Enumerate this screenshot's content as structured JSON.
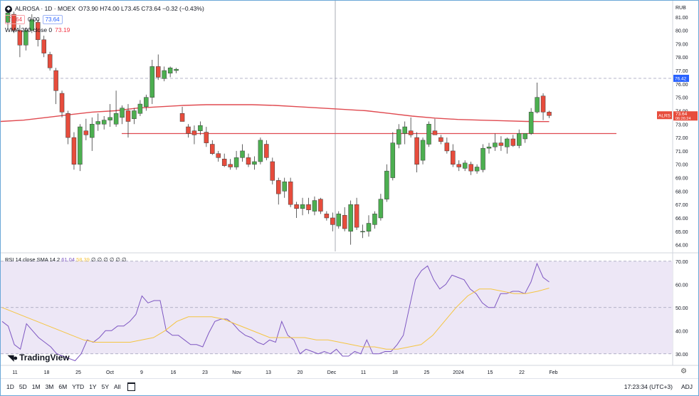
{
  "symbol": {
    "name": "ALROSA · 1D · MOEX",
    "ohlc_text": "O73.90 H74.00 L73.45 C73.64 −0.32 (−0.43%)",
    "price_box_red": "73.64",
    "change_box": "0.00",
    "price_box_blue": "73.64",
    "wma_label": "WMA 200 close 0",
    "wma_value": "73.19",
    "currency": "RUB",
    "last_label": "ALRS",
    "last_price": "73.64",
    "countdown": "06:26:24",
    "dashed_price": "76.42"
  },
  "rsi": {
    "label": "RSI 14 close SMA 14 2",
    "value": "61.04",
    "sma_value": "58.39",
    "extra": "∅ ∅ ∅ ∅ ∅ ∅"
  },
  "brand": "TradingView",
  "bottom_bar": {
    "ranges": [
      "1D",
      "5D",
      "1M",
      "3M",
      "6M",
      "YTD",
      "1Y",
      "5Y",
      "All"
    ],
    "clock": "17:23:34 (UTC+3)",
    "adj": "ADJ"
  },
  "colors": {
    "up": "#4caf50",
    "down": "#e74c3c",
    "wma": "#e04a50",
    "hline": "#e04a50",
    "rsi": "#7e57c2",
    "rsi_sma": "#f5c542",
    "rsi_band": "#ede7f6"
  },
  "chart_data": [
    {
      "type": "candlestick",
      "y_ticks": [
        "81.00",
        "80.00",
        "79.00",
        "78.00",
        "77.00",
        "76.00",
        "75.00",
        "74.00",
        "73.00",
        "72.00",
        "71.00",
        "70.00",
        "69.00",
        "68.00",
        "67.00",
        "66.00",
        "65.00",
        "64.00"
      ],
      "ylim": [
        63.5,
        82
      ],
      "x_ticks": [
        "11",
        "18",
        "25",
        "Oct",
        "9",
        "16",
        "23",
        "Nov",
        "13",
        "20",
        "Dec",
        "11",
        "18",
        "25",
        "2024",
        "15",
        "22",
        "Feb"
      ],
      "horizontal_lines": [
        72.3,
        76.42
      ],
      "candles": [
        [
          80.6,
          81.6,
          80.2,
          81.3
        ],
        [
          81.2,
          81.4,
          79.8,
          80.0
        ],
        [
          80.0,
          80.4,
          78.0,
          78.9
        ],
        [
          78.9,
          80.2,
          78.5,
          80.0
        ],
        [
          80.0,
          81.2,
          79.8,
          80.8
        ],
        [
          80.6,
          80.8,
          78.8,
          79.3
        ],
        [
          79.3,
          79.6,
          78.0,
          78.3
        ],
        [
          78.2,
          78.4,
          77.0,
          77.2
        ],
        [
          77.0,
          77.2,
          74.5,
          75.5
        ],
        [
          75.3,
          75.5,
          73.5,
          73.9
        ],
        [
          73.8,
          74.0,
          71.5,
          72.0
        ],
        [
          72.0,
          72.4,
          69.6,
          70.0
        ],
        [
          70.0,
          73.0,
          69.5,
          72.8
        ],
        [
          72.5,
          73.4,
          71.8,
          72.2
        ],
        [
          72.0,
          73.5,
          71.0,
          73.0
        ],
        [
          73.0,
          73.8,
          72.5,
          73.2
        ],
        [
          73.0,
          73.6,
          72.6,
          73.3
        ],
        [
          73.3,
          74.5,
          72.8,
          73.5
        ],
        [
          73.0,
          75.5,
          72.8,
          73.8
        ],
        [
          73.5,
          74.4,
          73.0,
          74.2
        ],
        [
          74.0,
          74.5,
          72.0,
          73.2
        ],
        [
          73.4,
          74.2,
          73.0,
          74.0
        ],
        [
          73.8,
          74.8,
          73.6,
          74.5
        ],
        [
          74.3,
          75.2,
          74.0,
          75.0
        ],
        [
          75.0,
          77.8,
          74.5,
          77.3
        ],
        [
          77.3,
          78.2,
          76.3,
          76.5
        ],
        [
          76.4,
          77.3,
          76.2,
          77.0
        ],
        [
          76.8,
          77.3,
          76.5,
          77.2
        ],
        [
          77.0,
          77.2,
          76.8,
          77.1
        ],
        [
          73.8,
          74.3,
          73.2,
          73.2
        ],
        [
          72.8,
          73.0,
          72.0,
          72.3
        ],
        [
          72.5,
          72.9,
          71.5,
          72.2
        ],
        [
          72.5,
          73.2,
          72.2,
          72.9
        ],
        [
          72.4,
          72.8,
          71.3,
          71.6
        ],
        [
          71.5,
          71.8,
          70.7,
          70.8
        ],
        [
          70.8,
          71.0,
          70.2,
          70.5
        ],
        [
          70.4,
          70.8,
          69.8,
          69.9
        ],
        [
          70.0,
          70.4,
          69.6,
          69.8
        ],
        [
          69.8,
          71.0,
          69.6,
          70.5
        ],
        [
          70.5,
          71.5,
          70.2,
          71.0
        ],
        [
          70.5,
          70.8,
          69.8,
          70.0
        ],
        [
          70.0,
          70.6,
          69.6,
          70.2
        ],
        [
          70.2,
          72.0,
          70.0,
          71.8
        ],
        [
          71.5,
          71.8,
          70.3,
          70.5
        ],
        [
          70.2,
          70.5,
          68.5,
          68.8
        ],
        [
          68.8,
          69.0,
          67.0,
          67.8
        ],
        [
          68.0,
          69.0,
          67.5,
          68.7
        ],
        [
          68.7,
          69.0,
          66.8,
          67.0
        ],
        [
          67.0,
          67.2,
          66.0,
          66.7
        ],
        [
          66.7,
          67.5,
          66.2,
          67.0
        ],
        [
          67.0,
          67.5,
          66.3,
          66.6
        ],
        [
          66.5,
          67.6,
          66.2,
          67.3
        ],
        [
          67.4,
          67.5,
          66.3,
          66.5
        ],
        [
          66.3,
          66.5,
          65.8,
          66.0
        ],
        [
          66.0,
          66.4,
          65.0,
          65.5
        ],
        [
          65.4,
          66.5,
          65.2,
          66.3
        ],
        [
          66.2,
          66.8,
          65.0,
          65.2
        ],
        [
          65.0,
          67.3,
          64.0,
          67.0
        ],
        [
          67.0,
          67.5,
          65.1,
          65.3
        ],
        [
          65.0,
          65.5,
          64.5,
          65.0
        ],
        [
          65.0,
          66.2,
          64.6,
          65.6
        ],
        [
          65.5,
          66.5,
          65.2,
          66.3
        ],
        [
          66.0,
          67.8,
          65.8,
          67.4
        ],
        [
          67.4,
          70.0,
          67.2,
          69.5
        ],
        [
          69.0,
          72.4,
          68.8,
          71.6
        ],
        [
          71.5,
          73.0,
          71.2,
          72.6
        ],
        [
          72.3,
          73.2,
          71.5,
          72.8
        ],
        [
          72.5,
          73.5,
          72.0,
          72.2
        ],
        [
          72.0,
          72.4,
          69.4,
          70.0
        ],
        [
          70.3,
          72.0,
          70.0,
          71.8
        ],
        [
          71.5,
          73.2,
          71.3,
          73.0
        ],
        [
          72.5,
          73.4,
          72.2,
          72.2
        ],
        [
          72.0,
          72.2,
          71.5,
          71.7
        ],
        [
          71.6,
          72.0,
          70.8,
          71.0
        ],
        [
          71.0,
          71.5,
          69.8,
          70.0
        ],
        [
          70.0,
          70.3,
          69.5,
          69.8
        ],
        [
          69.7,
          70.3,
          69.5,
          70.1
        ],
        [
          70.0,
          70.2,
          69.2,
          69.5
        ],
        [
          69.5,
          70.0,
          69.3,
          69.8
        ],
        [
          69.6,
          71.5,
          69.4,
          71.2
        ],
        [
          71.2,
          71.6,
          70.8,
          71.3
        ],
        [
          71.3,
          72.3,
          71.0,
          71.6
        ],
        [
          71.6,
          72.1,
          71.0,
          71.4
        ],
        [
          71.3,
          72.0,
          70.8,
          71.9
        ],
        [
          71.9,
          72.2,
          71.3,
          71.4
        ],
        [
          71.4,
          72.6,
          71.2,
          72.3
        ],
        [
          71.9,
          72.3,
          71.6,
          72.3
        ],
        [
          72.3,
          74.2,
          72.2,
          73.9
        ],
        [
          73.9,
          76.1,
          73.8,
          75.0
        ],
        [
          75.1,
          75.3,
          73.3,
          73.9
        ],
        [
          73.9,
          74.0,
          73.45,
          73.64
        ]
      ],
      "wma_200": [
        73.2,
        73.3,
        73.5,
        73.7,
        73.9,
        74.0,
        74.2,
        74.3,
        74.4,
        74.45,
        74.45,
        74.45,
        74.4,
        74.3,
        74.2,
        74.1,
        74.0,
        73.8,
        73.6,
        73.45,
        73.35,
        73.3,
        73.25,
        73.2,
        73.19
      ]
    },
    {
      "type": "line",
      "name": "RSI",
      "y_ticks": [
        "70.00",
        "60.00",
        "50.00",
        "40.00",
        "30.00"
      ],
      "ylim": [
        25,
        73
      ],
      "bands": [
        30,
        50,
        70
      ],
      "rsi": [
        44,
        42,
        34,
        32,
        43,
        40,
        37,
        35,
        33,
        30,
        29,
        28,
        27,
        30,
        36,
        35,
        37,
        40,
        40,
        42,
        42,
        44,
        47,
        55,
        52,
        53,
        53,
        40,
        38,
        38,
        36,
        34,
        34,
        33,
        39,
        44,
        45,
        45,
        43,
        40,
        38,
        37,
        35,
        34,
        36,
        35,
        44,
        38,
        36,
        30,
        32,
        31,
        30,
        31,
        30,
        32,
        29,
        29,
        31,
        30,
        36,
        30,
        30,
        31,
        31,
        34,
        38,
        50,
        62,
        66,
        68,
        62,
        58,
        60,
        64,
        63,
        62,
        58,
        56,
        52,
        50,
        50,
        56,
        56,
        57,
        57,
        56,
        61,
        69,
        63,
        61.04
      ],
      "sma": [
        50,
        48,
        46,
        44,
        42,
        40,
        38,
        36,
        35,
        35,
        35,
        35,
        36,
        37,
        40,
        44,
        46,
        46,
        46,
        45,
        43,
        41,
        39,
        37,
        37,
        37,
        37,
        36,
        36,
        35,
        34,
        33,
        33,
        32,
        32,
        33,
        34,
        38,
        44,
        50,
        55,
        58,
        58,
        57,
        56,
        56,
        57,
        58.39
      ]
    }
  ]
}
